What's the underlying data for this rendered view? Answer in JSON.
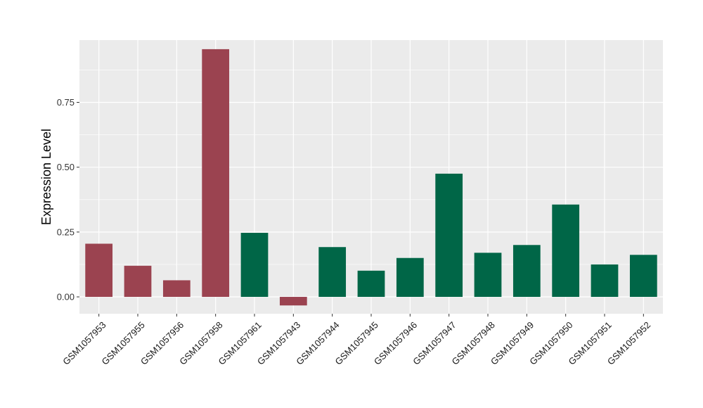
{
  "chart_data": {
    "type": "bar",
    "title": "",
    "xlabel": "",
    "ylabel": "Expression Level",
    "ylim": [
      -0.065,
      0.99
    ],
    "yticks": [
      0.0,
      0.25,
      0.5,
      0.75
    ],
    "ytick_labels": [
      "0.00",
      "0.25",
      "0.50",
      "0.75"
    ],
    "grid": true,
    "legend": "none",
    "categories": [
      "GSM1057953",
      "GSM1057955",
      "GSM1057956",
      "GSM1057958",
      "GSM1057961",
      "GSM1057943",
      "GSM1057944",
      "GSM1057945",
      "GSM1057946",
      "GSM1057947",
      "GSM1057948",
      "GSM1057949",
      "GSM1057950",
      "GSM1057951",
      "GSM1057952"
    ],
    "values": [
      0.205,
      0.12,
      0.064,
      0.955,
      0.247,
      -0.033,
      0.192,
      0.101,
      0.15,
      0.475,
      0.17,
      0.2,
      0.356,
      0.125,
      0.162
    ],
    "bar_colors": [
      "#9b4350",
      "#9b4350",
      "#9b4350",
      "#9b4350",
      "#006647",
      "#9b4350",
      "#006647",
      "#006647",
      "#006647",
      "#006647",
      "#006647",
      "#006647",
      "#006647",
      "#006647",
      "#006647"
    ],
    "colors": {
      "panel_background": "#ebebeb",
      "gridline": "#ffffff",
      "group_a": "#9b4350",
      "group_b": "#006647"
    }
  }
}
